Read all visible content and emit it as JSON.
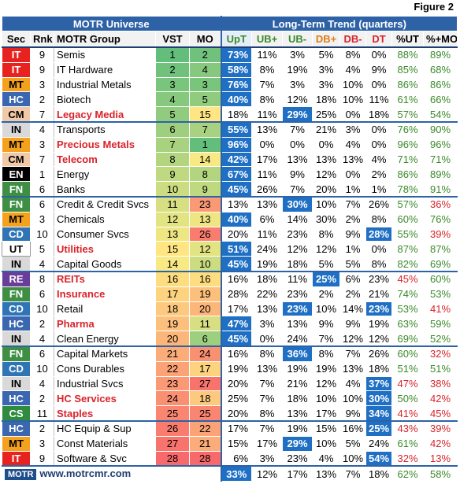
{
  "figure_label": "Figure 2",
  "headers": {
    "universe": "MOTR Universe",
    "trend": "Long-Term Trend (quarters)",
    "cols": [
      "Sec",
      "Rnk",
      "MOTR Group",
      "VST",
      "MO",
      "UpT",
      "UB+",
      "UB-",
      "DB+",
      "DB-",
      "DT",
      "%UT",
      "%+MO"
    ]
  },
  "footer": {
    "logo": "MOTR",
    "site": "www.motrcmr.com",
    "totals": [
      "33%",
      "12%",
      "17%",
      "13%",
      "7%",
      "18%",
      "62%",
      "58%"
    ]
  },
  "colors": {
    "IT": "#e8231f",
    "MT": "#f4a11d",
    "HC": "#3a67b0",
    "CM": "#f2c9a6",
    "IN": "#d9d9d9",
    "EN": "#000000",
    "FN": "#3e8e43",
    "CD": "#2f74b5",
    "UT": "#ffffff",
    "RE": "#6a3d9a",
    "CS": "#2f8c3f"
  },
  "chart_data": {
    "type": "table",
    "title": "Long-Term Trend (quarters)",
    "columns": [
      "Sec",
      "Rnk",
      "MOTR Group",
      "VST",
      "MO",
      "UpT",
      "UB+",
      "UB-",
      "DB+",
      "DB-",
      "DT",
      "%UT",
      "%+MO"
    ],
    "rows": [
      {
        "sec": "IT",
        "rnk": 9,
        "group": "Semis",
        "bold": false,
        "vst": 1,
        "mo": 2,
        "upt": "73%",
        "ubp": "11%",
        "ubm": "3%",
        "dbp": "5%",
        "dbm": "8%",
        "dt": "0%",
        "put": "88%",
        "pmo": "89%"
      },
      {
        "sec": "IT",
        "rnk": 9,
        "group": "IT Hardware",
        "bold": false,
        "vst": 2,
        "mo": 4,
        "upt": "58%",
        "ubp": "8%",
        "ubm": "19%",
        "dbp": "3%",
        "dbm": "4%",
        "dt": "9%",
        "put": "85%",
        "pmo": "68%"
      },
      {
        "sec": "MT",
        "rnk": 3,
        "group": "Industrial Metals",
        "bold": false,
        "vst": 3,
        "mo": 3,
        "upt": "76%",
        "ubp": "7%",
        "ubm": "3%",
        "dbp": "3%",
        "dbm": "10%",
        "dt": "0%",
        "put": "86%",
        "pmo": "86%"
      },
      {
        "sec": "HC",
        "rnk": 2,
        "group": "Biotech",
        "bold": false,
        "vst": 4,
        "mo": 5,
        "upt": "40%",
        "ubp": "8%",
        "ubm": "12%",
        "dbp": "18%",
        "dbm": "10%",
        "dt": "11%",
        "put": "61%",
        "pmo": "66%"
      },
      {
        "sec": "CM",
        "rnk": 7,
        "group": "Legacy Media",
        "bold": true,
        "vst": 5,
        "mo": 15,
        "upt": "18%",
        "ubp": "11%",
        "ubm": "29%",
        "dbp": "25%",
        "dbm": "0%",
        "dt": "18%",
        "put": "57%",
        "pmo": "54%",
        "hl": [
          "ubm"
        ],
        "end": true
      },
      {
        "sec": "IN",
        "rnk": 4,
        "group": "Transports",
        "bold": false,
        "vst": 6,
        "mo": 7,
        "upt": "55%",
        "ubp": "13%",
        "ubm": "7%",
        "dbp": "21%",
        "dbm": "3%",
        "dt": "0%",
        "put": "76%",
        "pmo": "90%"
      },
      {
        "sec": "MT",
        "rnk": 3,
        "group": "Precious Metals",
        "bold": true,
        "vst": 7,
        "mo": 1,
        "upt": "96%",
        "ubp": "0%",
        "ubm": "0%",
        "dbp": "0%",
        "dbm": "4%",
        "dt": "0%",
        "put": "96%",
        "pmo": "96%"
      },
      {
        "sec": "CM",
        "rnk": 7,
        "group": "Telecom",
        "bold": true,
        "vst": 8,
        "mo": 14,
        "upt": "42%",
        "ubp": "17%",
        "ubm": "13%",
        "dbp": "13%",
        "dbm": "13%",
        "dt": "4%",
        "put": "71%",
        "pmo": "71%"
      },
      {
        "sec": "EN",
        "rnk": 1,
        "group": "Energy",
        "bold": false,
        "vst": 9,
        "mo": 8,
        "upt": "67%",
        "ubp": "11%",
        "ubm": "9%",
        "dbp": "12%",
        "dbm": "0%",
        "dt": "2%",
        "put": "86%",
        "pmo": "89%"
      },
      {
        "sec": "FN",
        "rnk": 6,
        "group": "Banks",
        "bold": false,
        "vst": 10,
        "mo": 9,
        "upt": "45%",
        "ubp": "26%",
        "ubm": "7%",
        "dbp": "20%",
        "dbm": "1%",
        "dt": "1%",
        "put": "78%",
        "pmo": "91%",
        "end": true
      },
      {
        "sec": "FN",
        "rnk": 6,
        "group": "Credit & Credit Svcs",
        "bold": false,
        "vst": 11,
        "mo": 23,
        "upt": "13%",
        "ubp": "13%",
        "ubm": "30%",
        "dbp": "10%",
        "dbm": "7%",
        "dt": "26%",
        "put": "57%",
        "pmo": "36%",
        "hl": [
          "ubm"
        ]
      },
      {
        "sec": "MT",
        "rnk": 3,
        "group": "Chemicals",
        "bold": false,
        "vst": 12,
        "mo": 13,
        "upt": "40%",
        "ubp": "6%",
        "ubm": "14%",
        "dbp": "30%",
        "dbm": "2%",
        "dt": "8%",
        "put": "60%",
        "pmo": "76%"
      },
      {
        "sec": "CD",
        "rnk": 10,
        "group": "Consumer Svcs",
        "bold": false,
        "vst": 13,
        "mo": 26,
        "upt": "20%",
        "ubp": "11%",
        "ubm": "23%",
        "dbp": "8%",
        "dbm": "9%",
        "dt": "28%",
        "put": "55%",
        "pmo": "39%",
        "hl": [
          "dt"
        ]
      },
      {
        "sec": "UT",
        "rnk": 5,
        "group": "Utilities",
        "bold": true,
        "vst": 15,
        "mo": 12,
        "upt": "51%",
        "ubp": "24%",
        "ubm": "12%",
        "dbp": "12%",
        "dbm": "1%",
        "dt": "0%",
        "put": "87%",
        "pmo": "87%"
      },
      {
        "sec": "IN",
        "rnk": 4,
        "group": "Capital Goods",
        "bold": false,
        "vst": 14,
        "mo": 10,
        "upt": "45%",
        "ubp": "19%",
        "ubm": "18%",
        "dbp": "5%",
        "dbm": "5%",
        "dt": "8%",
        "put": "82%",
        "pmo": "69%",
        "end": true
      },
      {
        "sec": "RE",
        "rnk": 8,
        "group": "REITs",
        "bold": true,
        "vst": 16,
        "mo": 16,
        "upt": "16%",
        "ubp": "18%",
        "ubm": "11%",
        "dbp": "25%",
        "dbm": "6%",
        "dt": "23%",
        "put": "45%",
        "pmo": "60%",
        "hl": [
          "dbp"
        ]
      },
      {
        "sec": "FN",
        "rnk": 6,
        "group": "Insurance",
        "bold": true,
        "vst": 17,
        "mo": 19,
        "upt": "28%",
        "ubp": "22%",
        "ubm": "23%",
        "dbp": "2%",
        "dbm": "2%",
        "dt": "21%",
        "put": "74%",
        "pmo": "53%"
      },
      {
        "sec": "CD",
        "rnk": 10,
        "group": "Retail",
        "bold": false,
        "vst": 18,
        "mo": 20,
        "upt": "17%",
        "ubp": "13%",
        "ubm": "23%",
        "dbp": "10%",
        "dbm": "14%",
        "dt": "23%",
        "put": "53%",
        "pmo": "41%",
        "hl": [
          "ubm",
          "dt"
        ]
      },
      {
        "sec": "HC",
        "rnk": 2,
        "group": "Pharma",
        "bold": true,
        "vst": 19,
        "mo": 11,
        "upt": "47%",
        "ubp": "3%",
        "ubm": "13%",
        "dbp": "9%",
        "dbm": "9%",
        "dt": "19%",
        "put": "63%",
        "pmo": "59%"
      },
      {
        "sec": "IN",
        "rnk": 4,
        "group": "Clean Energy",
        "bold": false,
        "vst": 20,
        "mo": 6,
        "upt": "45%",
        "ubp": "0%",
        "ubm": "24%",
        "dbp": "7%",
        "dbm": "12%",
        "dt": "12%",
        "put": "69%",
        "pmo": "52%",
        "end": true
      },
      {
        "sec": "FN",
        "rnk": 6,
        "group": "Capital Markets",
        "bold": false,
        "vst": 21,
        "mo": 24,
        "upt": "16%",
        "ubp": "8%",
        "ubm": "36%",
        "dbp": "8%",
        "dbm": "7%",
        "dt": "26%",
        "put": "60%",
        "pmo": "32%",
        "hl": [
          "ubm"
        ]
      },
      {
        "sec": "CD",
        "rnk": 10,
        "group": "Cons Durables",
        "bold": false,
        "vst": 22,
        "mo": 17,
        "upt": "19%",
        "ubp": "13%",
        "ubm": "19%",
        "dbp": "19%",
        "dbm": "13%",
        "dt": "18%",
        "put": "51%",
        "pmo": "51%"
      },
      {
        "sec": "IN",
        "rnk": 4,
        "group": "Industrial Svcs",
        "bold": false,
        "vst": 23,
        "mo": 27,
        "upt": "20%",
        "ubp": "7%",
        "ubm": "21%",
        "dbp": "12%",
        "dbm": "4%",
        "dt": "37%",
        "put": "47%",
        "pmo": "38%",
        "hl": [
          "dt"
        ]
      },
      {
        "sec": "HC",
        "rnk": 2,
        "group": "HC Services",
        "bold": true,
        "vst": 24,
        "mo": 18,
        "upt": "25%",
        "ubp": "7%",
        "ubm": "18%",
        "dbp": "10%",
        "dbm": "10%",
        "dt": "30%",
        "put": "50%",
        "pmo": "42%",
        "hl": [
          "dt"
        ]
      },
      {
        "sec": "CS",
        "rnk": 11,
        "group": "Staples",
        "bold": true,
        "vst": 25,
        "mo": 25,
        "upt": "20%",
        "ubp": "8%",
        "ubm": "13%",
        "dbp": "17%",
        "dbm": "9%",
        "dt": "34%",
        "put": "41%",
        "pmo": "45%",
        "hl": [
          "dt"
        ],
        "end": true
      },
      {
        "sec": "HC",
        "rnk": 2,
        "group": "HC Equip & Sup",
        "bold": false,
        "vst": 26,
        "mo": 22,
        "upt": "17%",
        "ubp": "7%",
        "ubm": "19%",
        "dbp": "15%",
        "dbm": "16%",
        "dt": "25%",
        "put": "43%",
        "pmo": "39%",
        "hl": [
          "dt"
        ]
      },
      {
        "sec": "MT",
        "rnk": 3,
        "group": "Const Materials",
        "bold": false,
        "vst": 27,
        "mo": 21,
        "upt": "15%",
        "ubp": "17%",
        "ubm": "29%",
        "dbp": "10%",
        "dbm": "5%",
        "dt": "24%",
        "put": "61%",
        "pmo": "42%",
        "hl": [
          "ubm"
        ]
      },
      {
        "sec": "IT",
        "rnk": 9,
        "group": "Software & Svc",
        "bold": false,
        "vst": 28,
        "mo": 28,
        "upt": "6%",
        "ubp": "3%",
        "ubm": "23%",
        "dbp": "4%",
        "dbm": "10%",
        "dt": "54%",
        "put": "32%",
        "pmo": "13%",
        "hl": [
          "dt"
        ]
      }
    ]
  }
}
